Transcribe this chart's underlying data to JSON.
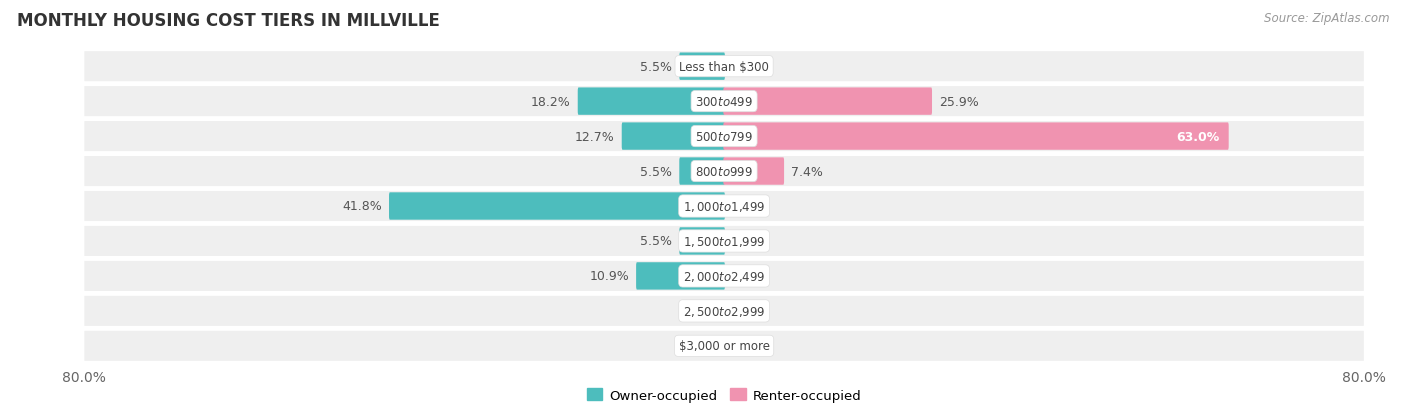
{
  "title": "MONTHLY HOUSING COST TIERS IN MILLVILLE",
  "source": "Source: ZipAtlas.com",
  "categories": [
    "Less than $300",
    "$300 to $499",
    "$500 to $799",
    "$800 to $999",
    "$1,000 to $1,499",
    "$1,500 to $1,999",
    "$2,000 to $2,499",
    "$2,500 to $2,999",
    "$3,000 or more"
  ],
  "owner_values": [
    5.5,
    18.2,
    12.7,
    5.5,
    41.8,
    5.5,
    10.9,
    0.0,
    0.0
  ],
  "renter_values": [
    0.0,
    25.9,
    63.0,
    7.4,
    0.0,
    0.0,
    0.0,
    0.0,
    0.0
  ],
  "owner_color": "#4DBDBD",
  "renter_color": "#F093B0",
  "background_row_color": "#EFEFEF",
  "axis_limit": 80.0,
  "bar_height": 0.58,
  "title_fontsize": 12,
  "source_fontsize": 8.5,
  "label_fontsize": 9,
  "category_fontsize": 8.5,
  "legend_fontsize": 9.5
}
